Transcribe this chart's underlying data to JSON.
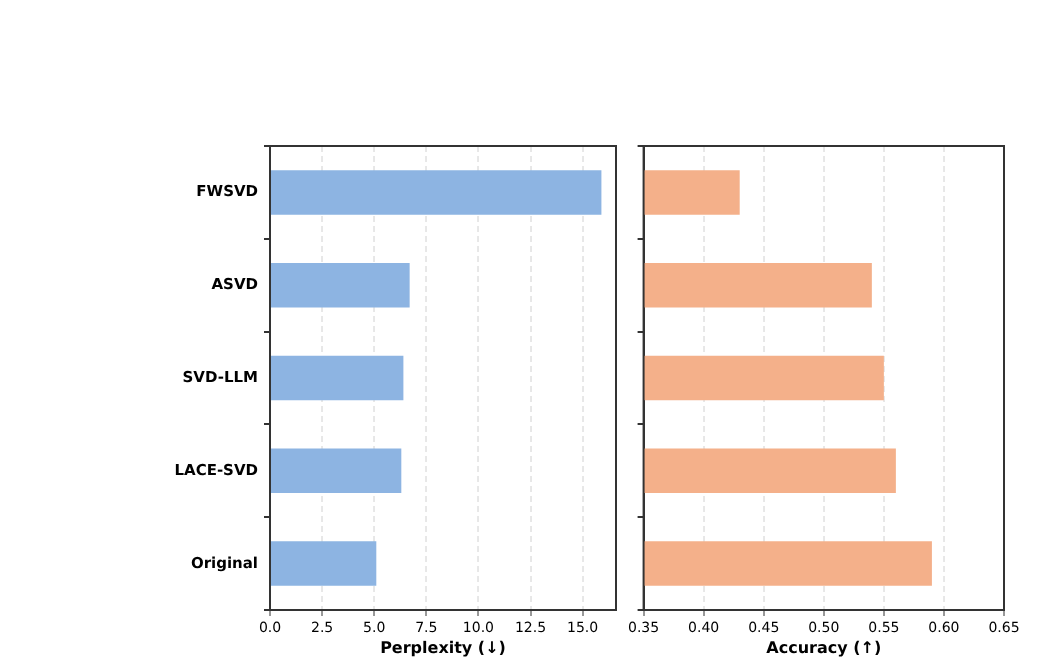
{
  "chart_data": [
    {
      "type": "bar",
      "orientation": "horizontal",
      "xlabel": "Perplexity (↓)",
      "categories": [
        "FWSVD",
        "ASVD",
        "SVD-LLM",
        "LACE-SVD",
        "Original"
      ],
      "series": [
        {
          "color": "#8db4e2",
          "values": [
            15.9,
            6.7,
            6.4,
            6.3,
            5.1
          ]
        }
      ],
      "xlim": [
        0,
        16.6
      ],
      "xticks": [
        {
          "value": 0,
          "label": "0.0"
        },
        {
          "value": 2.5,
          "label": "2.5"
        },
        {
          "value": 5,
          "label": "5.0"
        },
        {
          "value": 7.5,
          "label": "7.5"
        },
        {
          "value": 10,
          "label": "10.0"
        },
        {
          "value": 12.5,
          "label": "12.5"
        },
        {
          "value": 15,
          "label": "15.0"
        }
      ],
      "grid": "x"
    },
    {
      "type": "bar",
      "orientation": "horizontal",
      "xlabel": "Accuracy (↑)",
      "categories": [
        null,
        null,
        null,
        null,
        null
      ],
      "series": [
        {
          "color": "#f4b08a",
          "values": [
            0.43,
            0.54,
            0.55,
            0.56,
            0.59
          ]
        }
      ],
      "xlim": [
        0.35,
        0.65
      ],
      "xticks": [
        {
          "value": 0.35,
          "label": "0.35"
        },
        {
          "value": 0.4,
          "label": "0.40"
        },
        {
          "value": 0.45,
          "label": "0.45"
        },
        {
          "value": 0.5,
          "label": "0.50"
        },
        {
          "value": 0.55,
          "label": "0.55"
        },
        {
          "value": 0.6,
          "label": "0.60"
        },
        {
          "value": 0.65,
          "label": "0.65"
        }
      ],
      "grid": "x",
      "tick_labels": "x"
    }
  ]
}
